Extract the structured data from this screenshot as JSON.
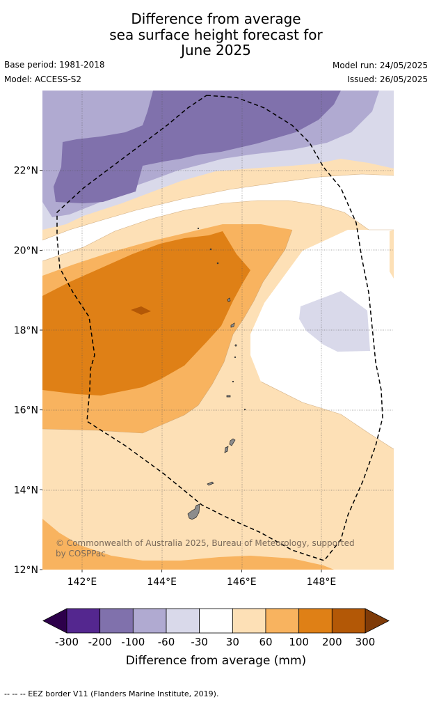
{
  "title_lines": [
    "Difference from average",
    "sea surface height forecast for",
    "June 2025"
  ],
  "meta": {
    "base_period": "Base period: 1981-2018",
    "model": "Model: ACCESS-S2",
    "model_run": "Model run: 24/05/2025",
    "issued": "Issued: 26/05/2025"
  },
  "copyright": [
    "© Commonwealth of Australia 2025, Bureau of Meteorology, supported",
    "by COSPPac"
  ],
  "footer": "--  --  -- EEZ border V11 (Flanders Marine Institute, 2019).",
  "chart_data": {
    "type": "heatmap",
    "title": "Difference from average sea surface height forecast for June 2025",
    "x_axis": {
      "ticks": [
        "142°E",
        "144°E",
        "146°E",
        "148°E"
      ],
      "tick_values": [
        142,
        144,
        146,
        148
      ],
      "range": [
        141,
        149.8
      ]
    },
    "y_axis": {
      "ticks": [
        "12°N",
        "14°N",
        "16°N",
        "18°N",
        "20°N",
        "22°N"
      ],
      "tick_values": [
        12,
        14,
        16,
        18,
        20,
        22
      ],
      "range": [
        12,
        24
      ]
    },
    "grid": true,
    "colorbar": {
      "label": "Difference from average (mm)",
      "tick_labels": [
        "-300",
        "-200",
        "-100",
        "-60",
        "-30",
        "30",
        "60",
        "100",
        "200",
        "300"
      ],
      "bins": [
        {
          "range": [
            -300,
            -200
          ],
          "color": "#54278f"
        },
        {
          "range": [
            -200,
            -100
          ],
          "color": "#8071ac"
        },
        {
          "range": [
            -100,
            -60
          ],
          "color": "#b0aad1"
        },
        {
          "range": [
            -60,
            -30
          ],
          "color": "#d9d9ea"
        },
        {
          "range": [
            -30,
            30
          ],
          "color": "#ffffff"
        },
        {
          "range": [
            30,
            60
          ],
          "color": "#fde0b6"
        },
        {
          "range": [
            60,
            100
          ],
          "color": "#f8b35f"
        },
        {
          "range": [
            100,
            200
          ],
          "color": "#df8016"
        },
        {
          "range": [
            200,
            300
          ],
          "color": "#b35806"
        }
      ],
      "under_color": "#2d004b",
      "over_color": "#7f3b08"
    }
  }
}
